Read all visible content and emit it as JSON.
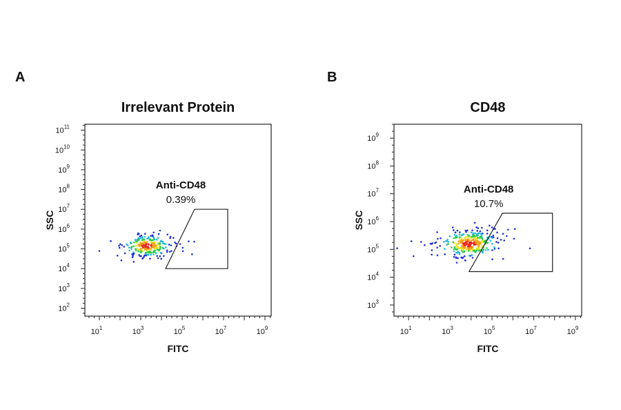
{
  "chart_data": [
    {
      "type": "scatter",
      "panel_letter": "A",
      "title": "Irrelevant Protein",
      "xlabel": "FITC",
      "ylabel": "SSC",
      "x_scale": "log",
      "y_scale": "log",
      "x_ticks": [
        1,
        3,
        5,
        7,
        9
      ],
      "y_ticks": [
        2,
        3,
        4,
        5,
        6,
        7,
        8,
        9,
        10,
        11
      ],
      "xlim_exp": [
        0.3,
        9.3
      ],
      "ylim_exp": [
        1.6,
        11.3
      ],
      "population": {
        "center_exp": [
          3.3,
          5.15
        ],
        "color": "heat-density"
      },
      "gate": {
        "name": "Anti-CD48",
        "percent": "0.39%",
        "polygon_exp": [
          [
            4.2,
            4.0
          ],
          [
            7.2,
            4.0
          ],
          [
            7.2,
            7.0
          ],
          [
            5.6,
            7.0
          ]
        ]
      }
    },
    {
      "type": "scatter",
      "panel_letter": "B",
      "title": "CD48",
      "xlabel": "FITC",
      "ylabel": "SSC",
      "x_scale": "log",
      "y_scale": "log",
      "x_ticks": [
        1,
        3,
        5,
        7,
        9
      ],
      "y_ticks": [
        3,
        4,
        5,
        6,
        7,
        8,
        9
      ],
      "xlim_exp": [
        0.3,
        9.3
      ],
      "ylim_exp": [
        2.6,
        9.5
      ],
      "population": {
        "center_exp": [
          3.9,
          5.2
        ],
        "color": "heat-density"
      },
      "gate": {
        "name": "Anti-CD48",
        "percent": "10.7%",
        "polygon_exp": [
          [
            3.9,
            4.2
          ],
          [
            7.9,
            4.2
          ],
          [
            7.9,
            6.3
          ],
          [
            5.5,
            6.3
          ]
        ]
      }
    }
  ]
}
